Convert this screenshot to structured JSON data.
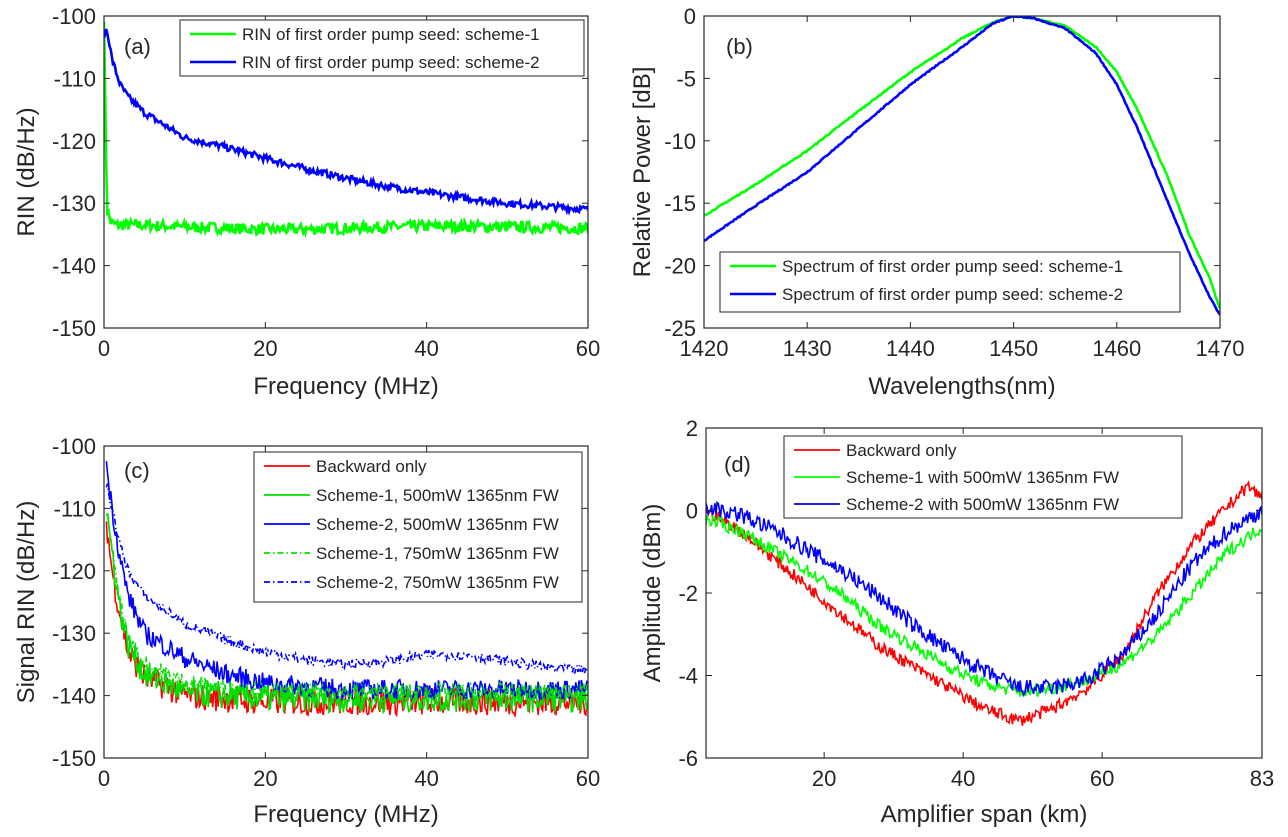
{
  "chart_data": [
    {
      "type": "line",
      "panel_label": "(a)",
      "xlabel": "Frequency (MHz)",
      "ylabel": "RIN (dB/Hz)",
      "xlim": [
        0,
        60
      ],
      "ylim": [
        -150,
        -100
      ],
      "xticks": [
        "0",
        "20",
        "40",
        "60"
      ],
      "yticks": [
        "-150",
        "-140",
        "-130",
        "-120",
        "-110",
        "-100"
      ],
      "legend_position": "top-right",
      "series": [
        {
          "name": "RIN of first order pump seed: scheme-1",
          "color": "#00ff00",
          "style": "solid",
          "noise": 0.9,
          "x": [
            0,
            0.2,
            0.4,
            0.8,
            1.5,
            3,
            5,
            10,
            15,
            20,
            25,
            30,
            35,
            40,
            45,
            50,
            55,
            60
          ],
          "y": [
            -100,
            -118,
            -131,
            -133,
            -133.5,
            -133.5,
            -133.5,
            -133.8,
            -134,
            -134.2,
            -134.2,
            -134,
            -133.8,
            -133.7,
            -133.7,
            -133.8,
            -133.9,
            -134
          ]
        },
        {
          "name": "RIN of first order pump seed: scheme-2",
          "color": "#0000ff",
          "style": "solid",
          "noise": 0.55,
          "x": [
            0,
            0.2,
            0.5,
            1,
            2,
            3,
            5,
            7.5,
            10,
            15,
            20,
            25,
            30,
            35,
            40,
            45,
            50,
            55,
            60
          ],
          "y": [
            -104,
            -102,
            -103,
            -107,
            -111,
            -113,
            -115.5,
            -117.5,
            -119.5,
            -121,
            -122.8,
            -124.5,
            -126,
            -127.3,
            -128.3,
            -129.2,
            -130,
            -130.5,
            -131
          ]
        }
      ]
    },
    {
      "type": "line",
      "panel_label": "(b)",
      "xlabel": "Wavelengths(nm)",
      "ylabel": "Relative Power [dB]",
      "xlim": [
        1420,
        1470
      ],
      "ylim": [
        -25,
        0
      ],
      "xticks": [
        "1420",
        "1430",
        "1440",
        "1450",
        "1460",
        "1470"
      ],
      "yticks": [
        "-25",
        "-20",
        "-15",
        "-10",
        "-5",
        "0"
      ],
      "legend_position": "bottom-right",
      "series": [
        {
          "name": "Spectrum of first order pump seed: scheme-1",
          "color": "#00ff00",
          "style": "solid",
          "noise": 0.05,
          "x": [
            1420,
            1425,
            1430,
            1435,
            1440,
            1445,
            1448,
            1450,
            1452,
            1455,
            1458,
            1460,
            1462,
            1465,
            1467,
            1469,
            1470
          ],
          "y": [
            -16,
            -13.5,
            -10.8,
            -7.6,
            -4.5,
            -1.8,
            -0.5,
            0,
            -0.2,
            -0.8,
            -2.5,
            -4.5,
            -7.5,
            -13,
            -17.5,
            -21,
            -23.5
          ]
        },
        {
          "name": "Spectrum of first order pump seed: scheme-2",
          "color": "#0000ff",
          "style": "solid",
          "noise": 0.05,
          "x": [
            1420,
            1425,
            1430,
            1435,
            1440,
            1445,
            1448,
            1450,
            1452,
            1455,
            1458,
            1460,
            1462,
            1465,
            1467,
            1469,
            1470
          ],
          "y": [
            -18,
            -15.2,
            -12.5,
            -9,
            -5.5,
            -2.5,
            -0.6,
            0,
            -0.2,
            -1,
            -3,
            -5.5,
            -9,
            -15,
            -19,
            -22.5,
            -24
          ]
        }
      ]
    },
    {
      "type": "line",
      "panel_label": "(c)",
      "xlabel": "Frequency (MHz)",
      "ylabel": "Signal RIN (dB/Hz)",
      "xlim": [
        0,
        60
      ],
      "ylim": [
        -150,
        -100
      ],
      "xticks": [
        "0",
        "20",
        "40",
        "60"
      ],
      "yticks": [
        "-150",
        "-140",
        "-130",
        "-120",
        "-110",
        "-100"
      ],
      "legend_position": "top-right",
      "series": [
        {
          "name": "Backward only",
          "color": "#ff0000",
          "style": "solid",
          "noise": 2.2,
          "x": [
            0.3,
            1,
            2,
            3,
            5,
            10,
            20,
            30,
            40,
            50,
            60
          ],
          "y": [
            -112,
            -120,
            -127,
            -133,
            -137,
            -140,
            -141,
            -141,
            -141,
            -141,
            -141
          ]
        },
        {
          "name": "Scheme-1, 500mW 1365nm FW",
          "color": "#00e000",
          "style": "solid",
          "noise": 2.2,
          "x": [
            0.3,
            1,
            2,
            3,
            5,
            10,
            20,
            30,
            40,
            50,
            60
          ],
          "y": [
            -110,
            -117,
            -126,
            -132,
            -136.5,
            -139.5,
            -140.5,
            -140.5,
            -140.5,
            -140.5,
            -140.5
          ]
        },
        {
          "name": "Scheme-2, 500mW 1365nm FW",
          "color": "#0000ff",
          "style": "solid",
          "noise": 1.6,
          "x": [
            0.3,
            1,
            2,
            3,
            5,
            10,
            15,
            20,
            30,
            40,
            50,
            60
          ],
          "y": [
            -103,
            -110,
            -118,
            -124,
            -130,
            -134,
            -136.5,
            -138,
            -139,
            -139,
            -139,
            -139
          ]
        },
        {
          "name": "Scheme-1, 750mW 1365nm FW",
          "color": "#00e000",
          "style": "dashdot",
          "noise": 1.5,
          "x": [
            0.3,
            1,
            2,
            3,
            5,
            10,
            20,
            30,
            40,
            50,
            60
          ],
          "y": [
            -110,
            -117,
            -125,
            -131,
            -135,
            -138,
            -139.5,
            -139.5,
            -139.5,
            -139.5,
            -139.5
          ]
        },
        {
          "name": "Scheme-2, 750mW 1365nm FW",
          "color": "#0000ff",
          "style": "dashdot",
          "noise": 0.8,
          "x": [
            0.3,
            1,
            2,
            3,
            5,
            10,
            15,
            20,
            25,
            30,
            35,
            40,
            45,
            50,
            55,
            60
          ],
          "y": [
            -106,
            -110,
            -116,
            -120,
            -124,
            -128.5,
            -131,
            -133,
            -134.3,
            -135,
            -134.5,
            -133.5,
            -133.5,
            -134.5,
            -135.5,
            -136
          ]
        }
      ]
    },
    {
      "type": "line",
      "panel_label": "(d)",
      "xlabel": "Amplifier span (km)",
      "ylabel": "Amplitude (dBm)",
      "xlim": [
        3,
        83
      ],
      "ylim": [
        -6,
        2
      ],
      "xticks": [
        "20",
        "40",
        "60",
        "83"
      ],
      "xtick_values": [
        20,
        40,
        60,
        83
      ],
      "yticks": [
        "-6",
        "-4",
        "-2",
        "0",
        "2"
      ],
      "legend_position": "top-left",
      "series": [
        {
          "name": "Backward only",
          "color": "#ff0000",
          "style": "solid",
          "noise": 0.15,
          "x": [
            3,
            8,
            13,
            18,
            23,
            28,
            33,
            38,
            43,
            48,
            53,
            58,
            63,
            68,
            73,
            78,
            81,
            83
          ],
          "y": [
            0,
            -0.5,
            -1.2,
            -1.9,
            -2.6,
            -3.3,
            -3.8,
            -4.3,
            -4.8,
            -5.1,
            -4.8,
            -4.3,
            -3.5,
            -2,
            -0.8,
            0.1,
            0.6,
            0.3
          ]
        },
        {
          "name": "Scheme-1 with 500mW 1365nm FW",
          "color": "#00ff00",
          "style": "solid",
          "noise": 0.15,
          "x": [
            3,
            8,
            13,
            18,
            23,
            28,
            33,
            38,
            43,
            48,
            53,
            58,
            63,
            68,
            73,
            78,
            83
          ],
          "y": [
            -0.2,
            -0.5,
            -1,
            -1.5,
            -2.1,
            -2.8,
            -3.3,
            -3.8,
            -4.2,
            -4.4,
            -4.3,
            -4.1,
            -3.7,
            -3,
            -2,
            -1,
            -0.4
          ]
        },
        {
          "name": "Scheme-2 with 500mW 1365nm FW",
          "color": "#0000ff",
          "style": "solid",
          "noise": 0.2,
          "x": [
            3,
            8,
            13,
            18,
            23,
            28,
            33,
            38,
            43,
            48,
            53,
            58,
            63,
            68,
            73,
            78,
            83
          ],
          "y": [
            0.1,
            -0.1,
            -0.5,
            -1,
            -1.5,
            -2.1,
            -2.8,
            -3.4,
            -3.9,
            -4.3,
            -4.3,
            -4.1,
            -3.5,
            -2.5,
            -1.3,
            -0.5,
            0
          ]
        }
      ]
    }
  ]
}
